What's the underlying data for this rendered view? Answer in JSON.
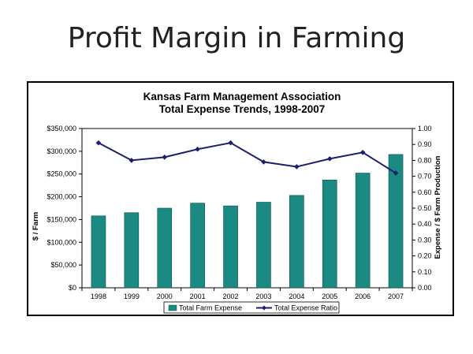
{
  "slide": {
    "title": "Profit Margin in Farming"
  },
  "chart_data": {
    "type": "bar+line",
    "title_lines": [
      "Kansas Farm Management Association",
      "Total Expense Trends, 1998-2007"
    ],
    "categories": [
      "1998",
      "1999",
      "2000",
      "2001",
      "2002",
      "2003",
      "2004",
      "2005",
      "2006",
      "2007"
    ],
    "series": [
      {
        "name": "Total Farm Expense",
        "type": "bar",
        "axis": "left",
        "color": "#1a8a82",
        "values": [
          158000,
          165000,
          175000,
          186000,
          180000,
          188000,
          203000,
          237000,
          252000,
          293000
        ]
      },
      {
        "name": "Total Expense Ratio",
        "type": "line",
        "axis": "right",
        "color": "#1c1f6b",
        "values": [
          0.91,
          0.8,
          0.82,
          0.87,
          0.91,
          0.79,
          0.76,
          0.81,
          0.85,
          0.72
        ]
      }
    ],
    "ylabel": "$ / Farm",
    "y2label": "Expense / $ Farm Production",
    "ylim": [
      0,
      350000
    ],
    "y2lim": [
      0,
      1.0
    ],
    "yticks": [
      "$0",
      "$50,000",
      "$100,000",
      "$150,000",
      "$200,000",
      "$250,000",
      "$300,000",
      "$350,000"
    ],
    "y2ticks": [
      "0.00",
      "0.10",
      "0.20",
      "0.30",
      "0.40",
      "0.50",
      "0.60",
      "0.70",
      "0.80",
      "0.90",
      "1.00"
    ],
    "legend_position": "bottom"
  }
}
